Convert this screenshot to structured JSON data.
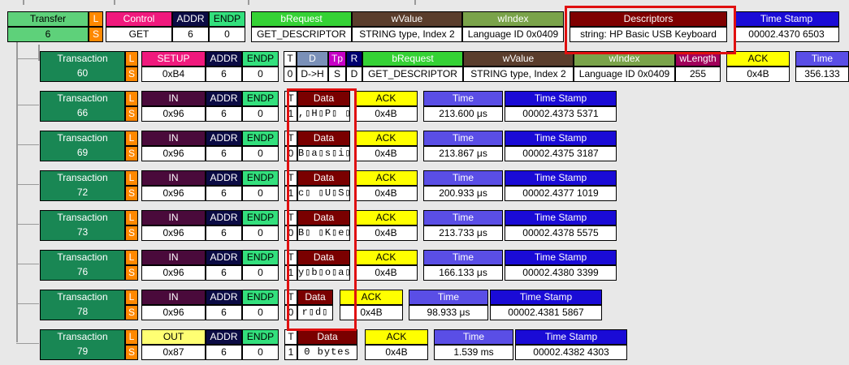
{
  "colors": {
    "transfer": "#5ed17a",
    "transaction": "#198754",
    "lsBadge": "#ff8800",
    "control": "#f0197d",
    "setup": "#f0197d",
    "addr": "#0b0b44",
    "endp": "#33e07d",
    "in": "#4a0a3b",
    "out": "#ffff73",
    "data": "#7a0000",
    "ack": "#ffff00",
    "time": "#5a4ee6",
    "timestamp": "#1a0bd6",
    "bRequest": "#35d235",
    "wValue": "#5a3d2c",
    "wIndex": "#7aa34a",
    "descriptors": "#7f0000",
    "wLength": "#a0005a",
    "D": "#7a90b8",
    "Tp": "#c600c6",
    "R": "#000070",
    "T": "#ffffff"
  },
  "labels": {
    "transfer": "Transfer",
    "transaction": "Transaction",
    "L": "L",
    "S": "S",
    "control": "Control",
    "setup": "SETUP",
    "in": "IN",
    "out": "OUT",
    "addr": "ADDR",
    "endp": "ENDP",
    "T": "T",
    "D": "D",
    "Tp": "Tp",
    "R": "R",
    "bRequest": "bRequest",
    "wValue": "wValue",
    "wIndex": "wIndex",
    "wLength": "wLength",
    "descriptors": "Descriptors",
    "ack": "ACK",
    "time": "Time",
    "timestamp": "Time Stamp",
    "data": "Data"
  },
  "transfer": {
    "id": "6",
    "type": "GET",
    "addr": "6",
    "endp": "0",
    "bRequest": "GET_DESCRIPTOR",
    "wValue": "STRING type, Index 2",
    "wIndex": "Language ID 0x0409",
    "descriptor": "string: HP Basic USB Keyboard",
    "timestamp": "00002.4370 6503"
  },
  "setup": {
    "id": "60",
    "pid": "0xB4",
    "addr": "6",
    "endp": "0",
    "T": "0",
    "D": "D->H",
    "Tp": "S",
    "R": "D",
    "bRequest": "GET_DESCRIPTOR",
    "wValue": "STRING type, Index 2",
    "wIndex": "Language ID 0x0409",
    "wLength": "255",
    "ack": "0x4B",
    "time": "356.133"
  },
  "transactions": [
    {
      "id": "66",
      "pid": "0x96",
      "addr": "6",
      "endp": "0",
      "t": "1",
      "data": ",▯H▯P▯ ▯",
      "ack": "0x4B",
      "time": "213.600 μs",
      "timestamp": "00002.4373 5371"
    },
    {
      "id": "69",
      "pid": "0x96",
      "addr": "6",
      "endp": "0",
      "t": "0",
      "data": "B▯a▯s▯i▯",
      "ack": "0x4B",
      "time": "213.867 μs",
      "timestamp": "00002.4375 3187"
    },
    {
      "id": "72",
      "pid": "0x96",
      "addr": "6",
      "endp": "0",
      "t": "1",
      "data": "c▯ ▯U▯S▯",
      "ack": "0x4B",
      "time": "200.933 μs",
      "timestamp": "00002.4377 1019"
    },
    {
      "id": "73",
      "pid": "0x96",
      "addr": "6",
      "endp": "0",
      "t": "0",
      "data": "B▯ ▯K▯e▯",
      "ack": "0x4B",
      "time": "213.733 μs",
      "timestamp": "00002.4378 5575"
    },
    {
      "id": "76",
      "pid": "0x96",
      "addr": "6",
      "endp": "0",
      "t": "1",
      "data": "y▯b▯o▯a▯",
      "ack": "0x4B",
      "time": "166.133 μs",
      "timestamp": "00002.4380 3399"
    },
    {
      "id": "78",
      "pid": "0x96",
      "addr": "6",
      "endp": "0",
      "t": "0",
      "data": "r▯d▯",
      "ack": "0x4B",
      "time": "98.933 μs",
      "timestamp": "00002.4381 5867"
    },
    {
      "id": "79",
      "pid": "0x87",
      "addr": "6",
      "endp": "0",
      "t": "1",
      "data": "0 bytes",
      "ack": "0x4B",
      "time": "1.539 ms",
      "timestamp": "00002.4382 4303"
    }
  ]
}
